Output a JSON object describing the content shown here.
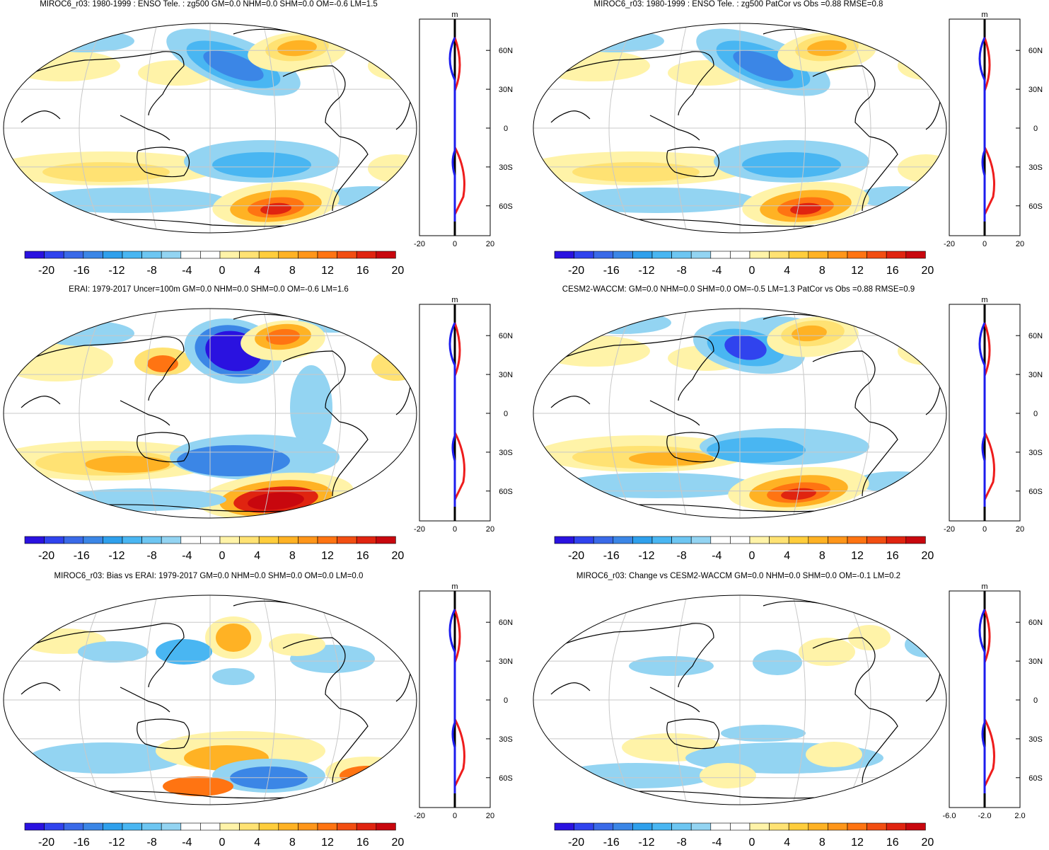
{
  "panels": [
    {
      "title": "MIROC6_r03: 1980-1999 : ENSO Tele. : zg500 GM=0.0 NHM=0.0 SHM=0.0 OM=-0.6 LM=1.5",
      "profile_unit": "m",
      "profile_xticks": [
        "-20",
        "0",
        "20"
      ],
      "kind": "model"
    },
    {
      "title": "MIROC6_r03: 1980-1999 : ENSO Tele. : zg500 PatCor vs Obs =0.88 RMSE=0.8",
      "profile_unit": "m",
      "profile_xticks": [
        "-20",
        "0",
        "20"
      ],
      "kind": "model"
    },
    {
      "title": "ERAI: 1979-2017 Uncer=100m GM=0.0 NHM=0.0 SHM=0.0 OM=-0.6 LM=1.6",
      "profile_unit": "m",
      "profile_xticks": [
        "-20",
        "0",
        "20"
      ],
      "kind": "obs"
    },
    {
      "title": "CESM2-WACCM: GM=0.0 NHM=0.0 SHM=0.0 OM=-0.5 LM=1.3 PatCor vs Obs =0.88 RMSE=0.9",
      "profile_unit": "m",
      "profile_xticks": [
        "-20",
        "0",
        "20"
      ],
      "kind": "model2"
    },
    {
      "title": "MIROC6_r03: Bias vs ERAI: 1979-2017 GM=0.0 NHM=0.0 SHM=0.0 OM=0.0 LM=0.0",
      "profile_unit": "m",
      "profile_xticks": [
        "-20",
        "0",
        "20"
      ],
      "kind": "bias"
    },
    {
      "title": "MIROC6_r03: Change vs CESM2-WACCM GM=0.0 NHM=0.0 SHM=0.0 OM=-0.1 LM=0.2",
      "profile_unit": "m",
      "profile_xticks": [
        "-6.0",
        "-2.0",
        "2.0"
      ],
      "kind": "change"
    }
  ],
  "latitude_labels": [
    "60N",
    "30N",
    "0",
    "30S",
    "60S"
  ],
  "colorbar": {
    "tick_labels": [
      "-20",
      "-16",
      "-12",
      "-8",
      "-4",
      "0",
      "4",
      "8",
      "12",
      "16",
      "20"
    ],
    "colors": [
      "#2a12e0",
      "#3043ee",
      "#3a6ae8",
      "#3b86e6",
      "#2fa0ec",
      "#49b6f2",
      "#6dc6f2",
      "#93d4f2",
      "#ffffff",
      "#ffffff",
      "#fff3a8",
      "#ffe273",
      "#ffcd3c",
      "#ffb224",
      "#ff961a",
      "#ff7412",
      "#f24e12",
      "#e02410",
      "#c8070e"
    ]
  },
  "colors": {
    "profile_zonal_pos": "#ee1c1c",
    "profile_zonal_neg": "#1c1cee",
    "grid": "#c8c8c8",
    "coast": "#000000"
  }
}
